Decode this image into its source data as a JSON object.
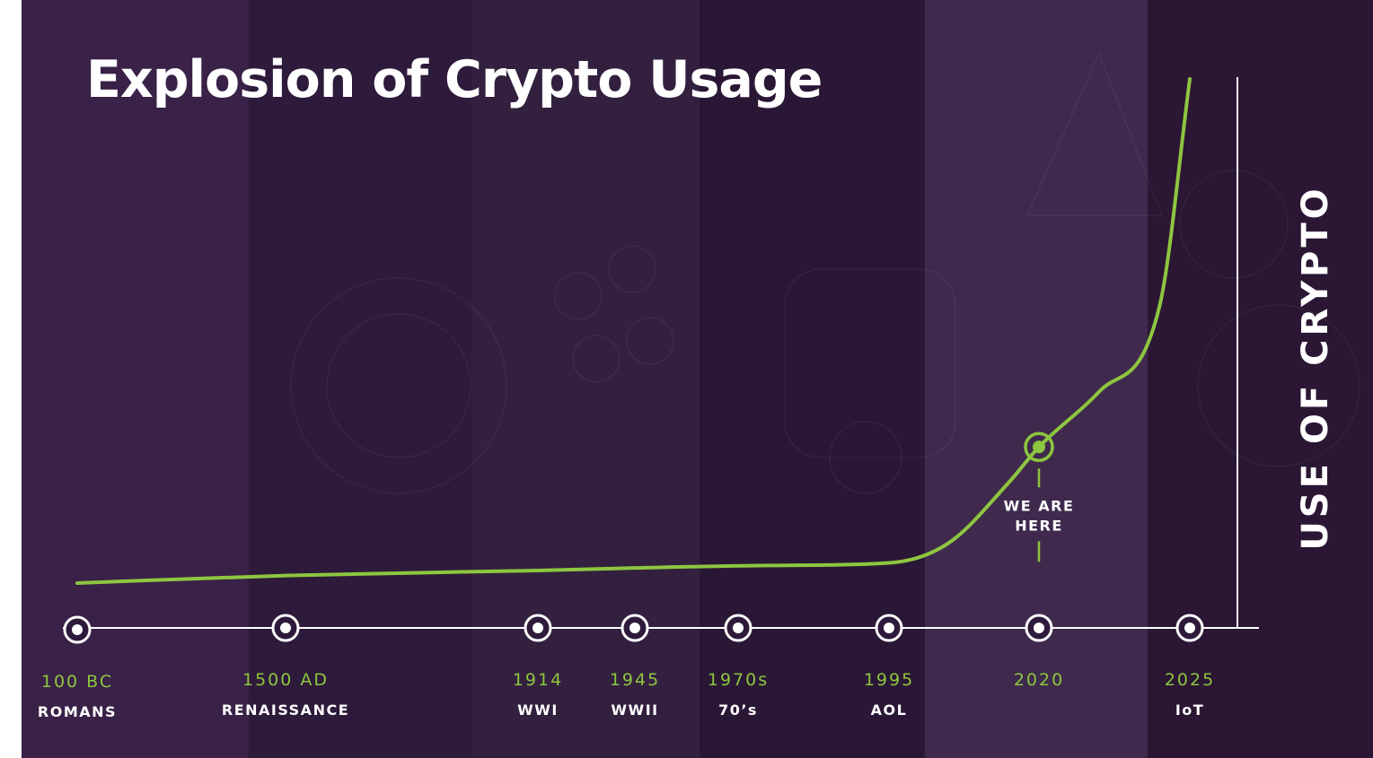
{
  "title": "Explosion of Crypto Usage",
  "colors": {
    "curve": "#8dc63f",
    "axis": "#ffffff",
    "year_label": "#8dc63f",
    "era_label": "#ffffff",
    "panels": [
      "#3a2147",
      "#2e1a3a",
      "#33203f",
      "#2a1735",
      "#3f2a4d",
      "#2b1634"
    ]
  },
  "chart_data": {
    "type": "line",
    "title": "Explosion of Crypto Usage",
    "ylabel": "USE OF CRYPTO",
    "xlabel": "",
    "grid": false,
    "timeline": [
      {
        "year": "100 BC",
        "era": "ROMANS"
      },
      {
        "year": "1500 AD",
        "era": "RENAISSANCE"
      },
      {
        "year": "1914",
        "era": "WWI"
      },
      {
        "year": "1945",
        "era": "WWII"
      },
      {
        "year": "1970s",
        "era": "70’s"
      },
      {
        "year": "1995",
        "era": "AOL"
      },
      {
        "year": "2020",
        "era": "",
        "current": true
      },
      {
        "year": "2025",
        "era": "IoT"
      }
    ],
    "series": [
      {
        "x": [
          -100,
          1500,
          1914,
          1945,
          1975,
          1995,
          2005,
          2015,
          2020,
          2022,
          2024,
          2025
        ],
        "values": [
          0,
          1.5,
          2.5,
          3,
          3.5,
          4,
          8,
          20,
          27,
          38,
          55,
          100
        ]
      }
    ],
    "ylim": [
      0,
      100
    ],
    "annotation": {
      "x": 2020,
      "text": "WE ARE HERE",
      "lines": [
        "WE ARE",
        "HERE"
      ]
    }
  }
}
